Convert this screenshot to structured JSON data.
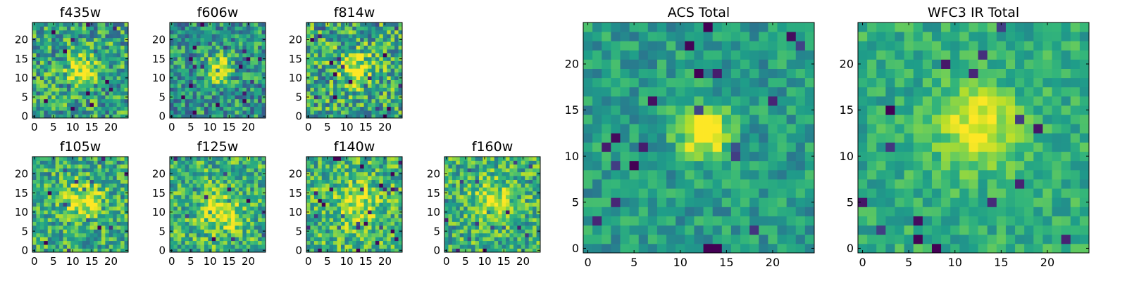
{
  "figure": {
    "colormap": "viridis",
    "background": "#ffffff",
    "grid": false
  },
  "chart_data": [
    {
      "type": "heatmap",
      "title": "f435w",
      "size": 25,
      "xticks": [
        0,
        5,
        10,
        15,
        20
      ],
      "yticks": [
        0,
        5,
        10,
        15,
        20
      ],
      "peak": [
        12.5,
        12.0
      ],
      "peak_sigma": 2.6,
      "peak_amp": 0.45,
      "base": 0.58,
      "noise": 0.3,
      "seed": 11
    },
    {
      "type": "heatmap",
      "title": "f606w",
      "size": 25,
      "xticks": [
        0,
        5,
        10,
        15,
        20
      ],
      "yticks": [
        0,
        5,
        10,
        15,
        20
      ],
      "peak": [
        12.0,
        12.5
      ],
      "peak_sigma": 2.4,
      "peak_amp": 0.5,
      "base": 0.52,
      "noise": 0.28,
      "seed": 23
    },
    {
      "type": "heatmap",
      "title": "f814w",
      "size": 25,
      "xticks": [
        0,
        5,
        10,
        15,
        20
      ],
      "yticks": [
        0,
        5,
        10,
        15,
        20
      ],
      "peak": [
        12.5,
        12.5
      ],
      "peak_sigma": 3.0,
      "peak_amp": 0.4,
      "base": 0.6,
      "noise": 0.32,
      "seed": 37
    },
    {
      "type": "heatmap",
      "title": "f105w",
      "size": 25,
      "xticks": [
        0,
        5,
        10,
        15,
        20
      ],
      "yticks": [
        0,
        5,
        10,
        15,
        20
      ],
      "peak": [
        13.0,
        13.0
      ],
      "peak_sigma": 3.4,
      "peak_amp": 0.35,
      "base": 0.62,
      "noise": 0.26,
      "seed": 41
    },
    {
      "type": "heatmap",
      "title": "f125w",
      "size": 25,
      "xticks": [
        0,
        5,
        10,
        15,
        20
      ],
      "yticks": [
        0,
        5,
        10,
        15,
        20
      ],
      "peak": [
        13.0,
        10.0
      ],
      "peak_sigma": 3.6,
      "peak_amp": 0.35,
      "base": 0.64,
      "noise": 0.26,
      "seed": 53
    },
    {
      "type": "heatmap",
      "title": "f140w",
      "size": 25,
      "xticks": [
        0,
        5,
        10,
        15,
        20
      ],
      "yticks": [
        0,
        5,
        10,
        15,
        20
      ],
      "peak": [
        12.5,
        12.0
      ],
      "peak_sigma": 3.6,
      "peak_amp": 0.3,
      "base": 0.66,
      "noise": 0.26,
      "seed": 67
    },
    {
      "type": "heatmap",
      "title": "f160w",
      "size": 25,
      "xticks": [
        0,
        5,
        10,
        15,
        20
      ],
      "yticks": [
        0,
        5,
        10,
        15,
        20
      ],
      "peak": [
        12.0,
        13.0
      ],
      "peak_sigma": 3.4,
      "peak_amp": 0.32,
      "base": 0.64,
      "noise": 0.26,
      "seed": 79
    },
    {
      "type": "heatmap",
      "title": "ACS Total",
      "size": 25,
      "xticks": [
        0,
        5,
        10,
        15,
        20
      ],
      "yticks": [
        0,
        5,
        10,
        15,
        20
      ],
      "peak": [
        12.5,
        12.5
      ],
      "peak_sigma": 1.9,
      "peak_amp": 0.55,
      "base": 0.55,
      "noise": 0.16,
      "seed": 97
    },
    {
      "type": "heatmap",
      "title": "WFC3 IR Total",
      "size": 25,
      "xticks": [
        0,
        5,
        10,
        15,
        20
      ],
      "yticks": [
        0,
        5,
        10,
        15,
        20
      ],
      "peak": [
        12.5,
        13.0
      ],
      "peak_sigma": 3.0,
      "peak_amp": 0.4,
      "base": 0.62,
      "noise": 0.14,
      "seed": 113
    }
  ]
}
